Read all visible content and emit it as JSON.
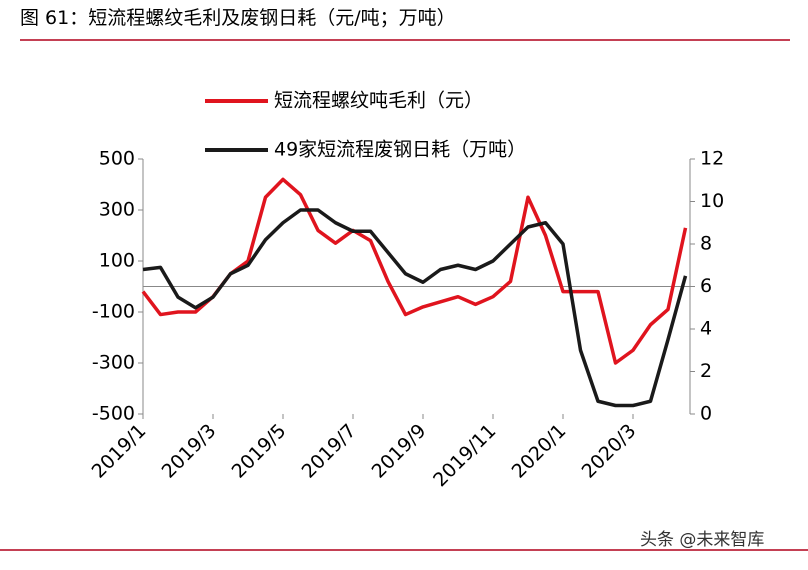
{
  "chart_data": {
    "type": "line",
    "title": "图 61：短流程螺纹毛利及废钢日耗（元/吨；万吨）",
    "watermark": "头条 @未来智库",
    "categories": [
      "2019/1",
      null,
      null,
      null,
      "2019/3",
      null,
      null,
      null,
      "2019/5",
      null,
      null,
      null,
      "2019/7",
      null,
      null,
      null,
      "2019/9",
      null,
      null,
      null,
      "2019/11",
      null,
      null,
      null,
      "2020/1",
      null,
      null,
      null,
      "2020/3",
      null,
      null,
      null
    ],
    "series": [
      {
        "name": "短流程螺纹吨毛利（元）",
        "color": "#e0141e",
        "values": [
          -20,
          -110,
          -100,
          -100,
          -40,
          50,
          100,
          350,
          420,
          360,
          220,
          170,
          220,
          180,
          20,
          -110,
          -80,
          -60,
          -40,
          -70,
          -40,
          20,
          350,
          200,
          -20,
          -20,
          -20,
          -300,
          -250,
          -150,
          -90,
          230
        ]
      },
      {
        "name": "49家短流程废钢日耗（万吨）",
        "color": "#1a1a1a",
        "axis": "y2",
        "values": [
          6.8,
          6.9,
          5.5,
          5.0,
          5.5,
          6.6,
          7.0,
          8.2,
          9.0,
          9.6,
          9.6,
          9.0,
          8.6,
          8.6,
          7.6,
          6.6,
          6.2,
          6.8,
          7.0,
          6.8,
          7.2,
          8.0,
          8.8,
          9.0,
          8.0,
          3.0,
          0.6,
          0.4,
          0.4,
          0.6,
          3.5,
          6.5
        ]
      }
    ],
    "ylim": [
      -500,
      500
    ],
    "yticks": [
      -500,
      -300,
      -100,
      100,
      300,
      500
    ],
    "y2lim": [
      0,
      12
    ],
    "y2ticks": [
      0,
      2,
      4,
      6,
      8,
      10,
      12
    ]
  }
}
